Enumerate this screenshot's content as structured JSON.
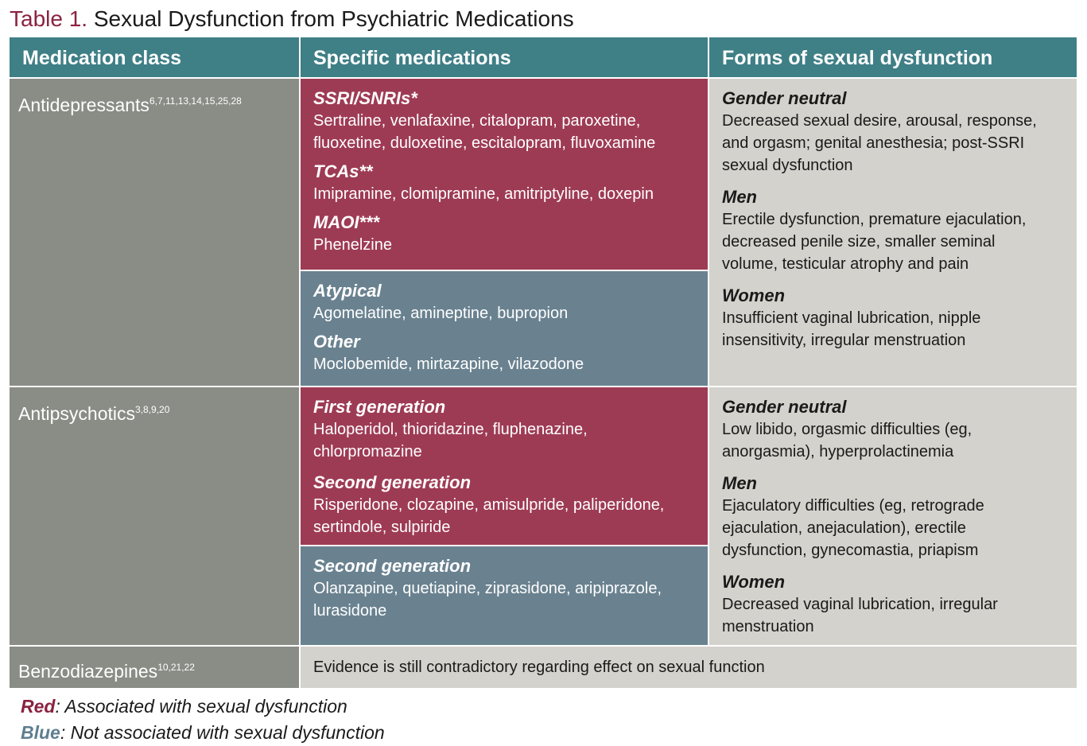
{
  "title": {
    "label": "Table 1.",
    "text": "Sexual Dysfunction from Psychiatric Medications"
  },
  "headers": [
    "Medication class",
    "Specific medications",
    "Forms of sexual dysfunction"
  ],
  "rows": {
    "antidepressants": {
      "name": "Antidepressants",
      "refs": "6,7,11,13,14,15,25,28",
      "red": [
        {
          "heading": "SSRI/SNRIs*",
          "lines": [
            "Sertraline, venlafaxine, citalopram, paroxetine,",
            "fluoxetine, duloxetine, escitalopram, fluvoxamine"
          ]
        },
        {
          "heading": "TCAs**",
          "lines": [
            "Imipramine, clomipramine, amitriptyline, doxepin"
          ]
        },
        {
          "heading": "MAOI***",
          "lines": [
            "Phenelzine"
          ]
        }
      ],
      "blue": [
        {
          "heading": "Atypical",
          "lines": [
            "Agomelatine, amineptine, bupropion"
          ]
        },
        {
          "heading": "Other",
          "lines": [
            "Moclobemide, mirtazapine, vilazodone"
          ]
        }
      ],
      "forms": [
        {
          "heading": "Gender neutral",
          "lines": [
            "Decreased sexual desire, arousal, response,",
            "and orgasm; genital anesthesia; post-SSRI",
            "sexual dysfunction"
          ]
        },
        {
          "heading": "Men",
          "lines": [
            "Erectile dysfunction, premature ejaculation,",
            "decreased penile size, smaller seminal",
            "volume, testicular atrophy and pain"
          ]
        },
        {
          "heading": "Women",
          "lines": [
            "Insufficient vaginal lubrication, nipple",
            "insensitivity, irregular menstruation"
          ]
        }
      ]
    },
    "antipsychotics": {
      "name": "Antipsychotics",
      "refs": "3,8,9,20",
      "red": [
        {
          "heading": "First generation",
          "lines": [
            "Haloperidol, thioridazine, fluphenazine,",
            "chlorpromazine"
          ]
        },
        {
          "heading": "Second generation",
          "lines": [
            "Risperidone, clozapine, amisulpride, paliperidone,",
            "sertindole, sulpiride"
          ]
        }
      ],
      "blue": [
        {
          "heading": "Second generation",
          "lines": [
            "Olanzapine, quetiapine, ziprasidone, aripiprazole,",
            "lurasidone"
          ]
        }
      ],
      "forms": [
        {
          "heading": "Gender neutral",
          "lines": [
            "Low libido, orgasmic difficulties (eg,",
            "anorgasmia), hyperprolactinemia"
          ]
        },
        {
          "heading": "Men",
          "lines": [
            "Ejaculatory difficulties (eg, retrograde",
            "ejaculation, anejaculation), erectile",
            "dysfunction, gynecomastia, priapism"
          ]
        },
        {
          "heading": "Women",
          "lines": [
            "Decreased vaginal lubrication, irregular",
            "menstruation"
          ]
        }
      ]
    },
    "benzodiazepines": {
      "name": "Benzodiazepines",
      "refs": "10,21,22",
      "text": "Evidence is still contradictory regarding effect on sexual function"
    }
  },
  "legend": [
    {
      "key": "Red",
      "text": ": Associated with sexual dysfunction",
      "color": "#8b2240"
    },
    {
      "key": "Blue",
      "text": ": Not associated with sexual dysfunction",
      "color": "#5f7f8f"
    }
  ]
}
